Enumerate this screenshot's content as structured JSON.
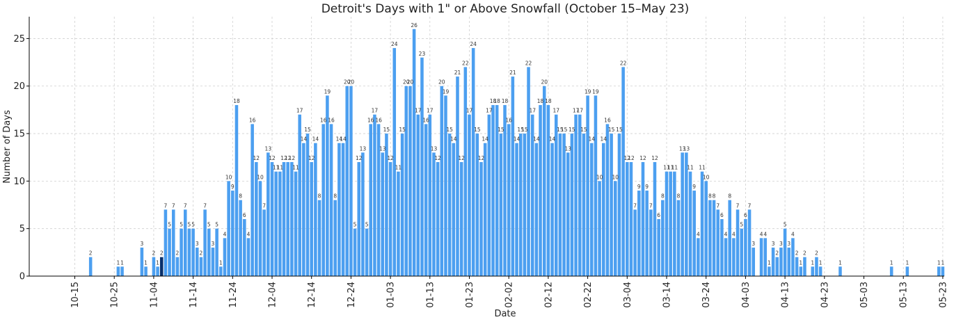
{
  "chart_data": {
    "type": "bar",
    "title": "Detroit's Days with 1\" or Above Snowfall (October 15–May 23)",
    "xlabel": "Date",
    "ylabel": "Number of Days",
    "ylim": [
      0,
      27.3
    ],
    "yticks": [
      0,
      5,
      10,
      15,
      20,
      25
    ],
    "grid": true,
    "start_date": "10-15",
    "x_ticks": [
      "10-15",
      "10-25",
      "11-04",
      "11-14",
      "11-24",
      "12-04",
      "12-14",
      "12-24",
      "01-03",
      "01-13",
      "01-23",
      "02-02",
      "02-12",
      "02-22",
      "03-04",
      "03-14",
      "03-24",
      "04-03",
      "04-13",
      "04-23",
      "05-03",
      "05-13",
      "05-23"
    ],
    "highlight": {
      "date": "11-06",
      "color": "#08306b"
    },
    "bar_color": "#4c9ff0",
    "values": [
      0,
      0,
      0,
      0,
      2,
      0,
      0,
      0,
      0,
      0,
      0,
      1,
      1,
      0,
      0,
      0,
      0,
      3,
      1,
      0,
      2,
      1,
      2,
      7,
      5,
      7,
      2,
      5,
      7,
      5,
      5,
      3,
      2,
      7,
      5,
      3,
      5,
      1,
      4,
      10,
      9,
      18,
      8,
      6,
      4,
      16,
      12,
      10,
      7,
      13,
      12,
      11,
      11,
      12,
      12,
      12,
      11,
      17,
      14,
      15,
      12,
      14,
      8,
      16,
      19,
      16,
      8,
      14,
      14,
      20,
      20,
      5,
      12,
      13,
      5,
      16,
      17,
      16,
      13,
      15,
      12,
      24,
      11,
      15,
      20,
      20,
      26,
      17,
      23,
      16,
      17,
      13,
      12,
      20,
      19,
      15,
      14,
      21,
      12,
      22,
      17,
      24,
      15,
      12,
      14,
      17,
      18,
      18,
      15,
      18,
      16,
      21,
      14,
      15,
      15,
      22,
      17,
      14,
      18,
      20,
      18,
      14,
      17,
      15,
      15,
      13,
      15,
      17,
      17,
      15,
      19,
      14,
      19,
      10,
      14,
      16,
      15,
      10,
      15,
      22,
      12,
      12,
      7,
      9,
      12,
      9,
      7,
      12,
      6,
      8,
      11,
      11,
      11,
      8,
      13,
      13,
      11,
      9,
      4,
      11,
      10,
      8,
      8,
      7,
      6,
      4,
      8,
      4,
      7,
      5,
      6,
      7,
      3,
      0,
      4,
      4,
      1,
      3,
      2,
      3,
      5,
      3,
      4,
      2,
      1,
      2,
      0,
      1,
      2,
      1,
      0,
      0,
      0,
      0,
      1,
      0,
      0,
      0,
      0,
      0,
      0,
      0,
      0,
      0,
      0,
      0,
      0,
      1,
      0,
      0,
      0,
      1,
      0,
      0,
      0,
      0,
      0,
      0,
      0,
      1,
      1,
      0
    ]
  }
}
